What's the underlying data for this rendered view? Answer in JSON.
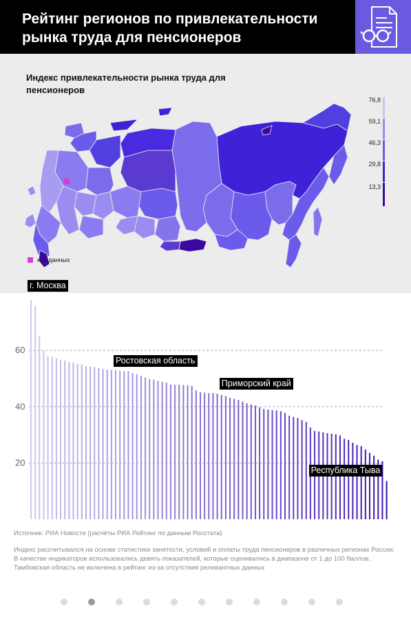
{
  "header": {
    "title": "Рейтинг регионов по привлекательности рынка труда для пенсионеров",
    "icon": "document-glasses-icon",
    "icon_bg": "#6a5ae0"
  },
  "map": {
    "title": "Индекс привлекательности рынка труда для пенсионеров",
    "legend": {
      "values": [
        "76,8",
        "59,1",
        "46,3",
        "29,8",
        "13,3"
      ],
      "colors": [
        "#cbc6ec",
        "#9a8cf0",
        "#6b5bea",
        "#3f22d8",
        "#3a0aa0"
      ]
    },
    "nodata_label": "нет данных",
    "nodata_color": "#d33fd6"
  },
  "chart_data": {
    "type": "bar",
    "y_ticks": [
      20,
      40,
      60
    ],
    "ylim": [
      0,
      80
    ],
    "grid": true,
    "values": [
      77.8,
      75.8,
      65.0,
      59.8,
      58.0,
      57.8,
      57.2,
      56.6,
      56.4,
      55.8,
      55.7,
      55.2,
      55.0,
      54.4,
      54.2,
      54.0,
      53.8,
      53.4,
      53.2,
      53.1,
      53.0,
      52.8,
      52.7,
      52.6,
      52.0,
      51.6,
      51.0,
      50.4,
      49.8,
      49.6,
      49.2,
      48.8,
      48.6,
      47.9,
      47.8,
      47.8,
      47.7,
      47.6,
      47.4,
      45.8,
      45.2,
      45.0,
      44.8,
      44.8,
      44.6,
      44.2,
      43.8,
      43.2,
      42.8,
      42.4,
      41.8,
      41.2,
      40.8,
      40.4,
      39.8,
      39.2,
      39.0,
      38.8,
      38.7,
      38.4,
      37.8,
      36.8,
      36.4,
      36.0,
      35.2,
      34.6,
      32.6,
      31.4,
      31.2,
      30.9,
      30.6,
      30.4,
      30.2,
      29.8,
      28.6,
      28.2,
      27.2,
      26.4,
      26.0,
      24.8,
      23.6,
      22.6,
      21.2,
      20.6,
      13.6
    ],
    "annotations": [
      {
        "label": "г. Москва",
        "index": 0
      },
      {
        "label": "Ростовская область",
        "index": 20
      },
      {
        "label": "Приморский край",
        "index": 45
      },
      {
        "label": "Республика Тыва",
        "index": 84
      }
    ]
  },
  "footer": {
    "source": "Источник: РИА Новости (расчёты РИА Рейтинг по данным Росстата)",
    "note": "Индекс рассчитывался на основе статистики занятости, условий и оплаты труда пенсионеров в различных регионах России. В качестве индикаторов использовались девять показателей, которые оценивались в диапазоне от 1 до 100 баллов. Тамбовская область не включена в рейтинг из-за отсутствия релевантных данных"
  },
  "pagination": {
    "count": 11,
    "active": 1
  }
}
